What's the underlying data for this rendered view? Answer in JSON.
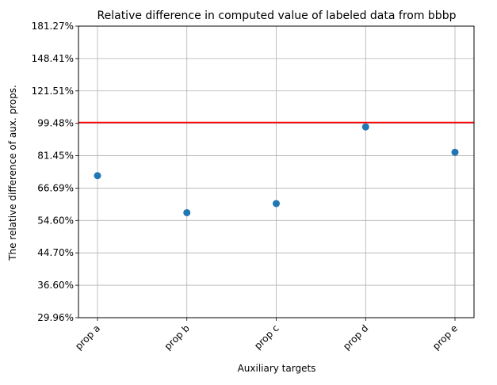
{
  "chart_data": {
    "type": "scatter",
    "title": "Relative difference in computed value of labeled data from bbbp",
    "xlabel": "Auxiliary targets",
    "ylabel": "The relative difference of aux. props.",
    "categories": [
      "prop a",
      "prop b",
      "prop c",
      "prop d",
      "prop e"
    ],
    "series": [
      {
        "values": [
          72.0,
          57.3,
          60.6,
          97.3,
          83.2
        ]
      }
    ],
    "y_scale": "log",
    "yticks": [
      {
        "value": 29.96,
        "label": "29.96%"
      },
      {
        "value": 36.6,
        "label": "36.60%"
      },
      {
        "value": 44.7,
        "label": "44.70%"
      },
      {
        "value": 54.6,
        "label": "54.60%"
      },
      {
        "value": 66.69,
        "label": "66.69%"
      },
      {
        "value": 81.45,
        "label": "81.45%"
      },
      {
        "value": 99.48,
        "label": "99.48%"
      },
      {
        "value": 121.51,
        "label": "121.51%"
      },
      {
        "value": 148.41,
        "label": "148.41%"
      },
      {
        "value": 181.27,
        "label": "181.27%"
      }
    ],
    "ylim": [
      29.96,
      181.27
    ],
    "reference_line": {
      "value": 100,
      "color": "#ff0000"
    },
    "grid": true,
    "marker_color": "#1f77b4"
  }
}
